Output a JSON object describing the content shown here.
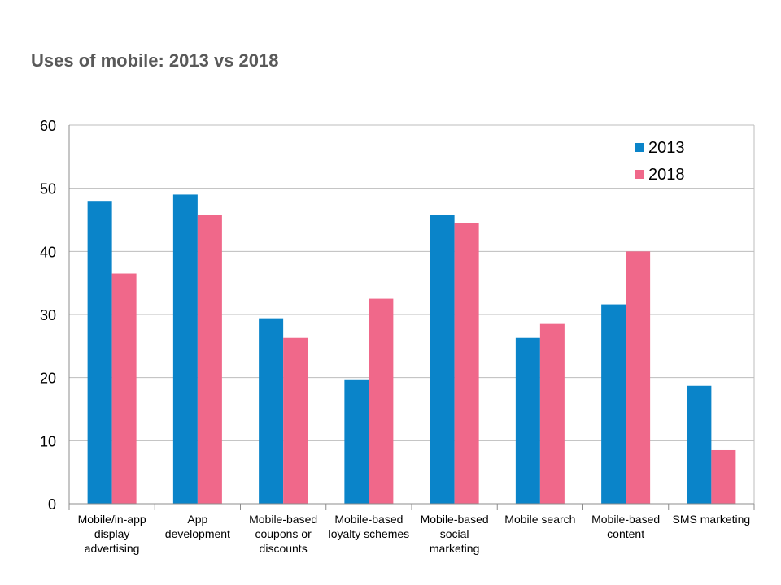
{
  "title": "Uses of mobile: 2013 vs 2018",
  "chart_data": {
    "type": "bar",
    "title": "Uses of mobile: 2013 vs 2018",
    "xlabel": "",
    "ylabel": "",
    "categories": [
      [
        "Mobile/in-app",
        "display",
        "advertising"
      ],
      [
        "App",
        "development"
      ],
      [
        "Mobile-based",
        "coupons or",
        "discounts"
      ],
      [
        "Mobile-based",
        "loyalty schemes"
      ],
      [
        "Mobile-based",
        "social",
        "marketing"
      ],
      [
        "Mobile search"
      ],
      [
        "Mobile-based",
        "content"
      ],
      [
        "SMS marketing"
      ]
    ],
    "series": [
      {
        "name": "2013",
        "color": "#0a84c9",
        "values": [
          48,
          49,
          29.4,
          19.6,
          45.8,
          26.3,
          31.6,
          18.7
        ]
      },
      {
        "name": "2018",
        "color": "#f0688a",
        "values": [
          36.5,
          45.8,
          26.3,
          32.5,
          44.5,
          28.5,
          40,
          8.5
        ]
      }
    ],
    "ylim": [
      0,
      60
    ],
    "yticks": [
      0,
      10,
      20,
      30,
      40,
      50,
      60
    ],
    "grid": true,
    "legend_position": "top-right"
  }
}
